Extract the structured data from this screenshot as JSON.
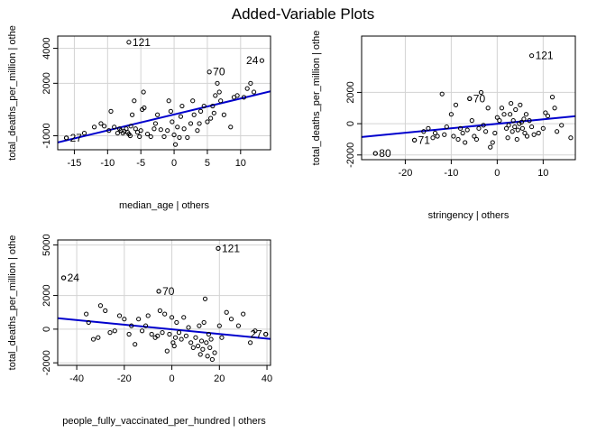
{
  "title": "Added-Variable Plots",
  "chart_data": [
    {
      "type": "scatter",
      "xlabel": "median_age | others",
      "ylabel": "total_deaths_per_million  | othe",
      "xlim": [
        -17.5,
        14.5
      ],
      "ylim": [
        -1800,
        4700
      ],
      "xticks": [
        -15,
        -10,
        -5,
        0,
        5,
        10
      ],
      "yticks": [
        -1000,
        2000,
        4000
      ],
      "grid": true,
      "fit_line": {
        "x": [
          -17.5,
          14.5
        ],
        "y": [
          -1380,
          1540
        ]
      },
      "labeled_points": [
        {
          "label": "121",
          "x": -6.8,
          "y": 4350
        },
        {
          "label": "70",
          "x": 5.3,
          "y": 2650
        },
        {
          "label": "24",
          "x": 13.2,
          "y": 3300
        },
        {
          "label": "27",
          "x": -16.2,
          "y": -1120
        }
      ],
      "points": [
        [
          -16.2,
          -1120
        ],
        [
          -13.5,
          -850
        ],
        [
          -12.0,
          -500
        ],
        [
          -11.0,
          -300
        ],
        [
          -10.5,
          -450
        ],
        [
          -9.8,
          -700
        ],
        [
          -9.5,
          400
        ],
        [
          -9.0,
          -500
        ],
        [
          -8.5,
          -850
        ],
        [
          -8.2,
          -600
        ],
        [
          -8.0,
          -700
        ],
        [
          -7.7,
          -850
        ],
        [
          -7.5,
          -750
        ],
        [
          -7.2,
          -600
        ],
        [
          -7.0,
          -800
        ],
        [
          -6.8,
          -900
        ],
        [
          -6.6,
          -1000
        ],
        [
          -6.5,
          -450
        ],
        [
          -6.3,
          200
        ],
        [
          -6.0,
          1000
        ],
        [
          -5.8,
          -600
        ],
        [
          -5.5,
          -800
        ],
        [
          -5.2,
          -1050
        ],
        [
          -5.0,
          -700
        ],
        [
          -4.8,
          500
        ],
        [
          -4.6,
          1500
        ],
        [
          -4.5,
          600
        ],
        [
          -4.0,
          -900
        ],
        [
          -3.5,
          -1050
        ],
        [
          -3.0,
          -600
        ],
        [
          -2.8,
          -300
        ],
        [
          -2.5,
          200
        ],
        [
          -2.0,
          -650
        ],
        [
          -1.5,
          -1050
        ],
        [
          -1.0,
          -700
        ],
        [
          -0.8,
          1000
        ],
        [
          -0.5,
          400
        ],
        [
          -0.3,
          -200
        ],
        [
          0,
          -950
        ],
        [
          0.2,
          -1500
        ],
        [
          0.5,
          -500
        ],
        [
          0.8,
          -1100
        ],
        [
          1.0,
          100
        ],
        [
          1.2,
          700
        ],
        [
          1.5,
          -600
        ],
        [
          2.0,
          -1100
        ],
        [
          2.5,
          -300
        ],
        [
          2.8,
          1000
        ],
        [
          3.0,
          200
        ],
        [
          3.5,
          -700
        ],
        [
          3.8,
          -300
        ],
        [
          4.0,
          400
        ],
        [
          4.5,
          700
        ],
        [
          5.0,
          -200
        ],
        [
          5.5,
          0
        ],
        [
          5.8,
          700
        ],
        [
          6.0,
          300
        ],
        [
          6.2,
          1300
        ],
        [
          6.5,
          2000
        ],
        [
          6.8,
          1500
        ],
        [
          7.0,
          1000
        ],
        [
          7.5,
          200
        ],
        [
          8.5,
          -500
        ],
        [
          9.0,
          1200
        ],
        [
          9.5,
          1300
        ],
        [
          10.5,
          1200
        ],
        [
          11.0,
          1700
        ],
        [
          11.5,
          2000
        ],
        [
          12.0,
          1500
        ]
      ]
    },
    {
      "type": "scatter",
      "xlabel": "stringency | others",
      "ylabel": "total_deaths_per_million  | othe",
      "xlim": [
        -29.5,
        17
      ],
      "ylim": [
        -2300,
        5600
      ],
      "xticks": [
        -20,
        -10,
        0,
        10
      ],
      "yticks": [
        -2000,
        0,
        2000
      ],
      "grid": true,
      "fit_line": {
        "x": [
          -29.5,
          17
        ],
        "y": [
          -850,
          480
        ]
      },
      "labeled_points": [
        {
          "label": "121",
          "x": 7.5,
          "y": 4350
        },
        {
          "label": "70",
          "x": -6.0,
          "y": 1600
        },
        {
          "label": "71",
          "x": -18.0,
          "y": -1050
        },
        {
          "label": "80",
          "x": -26.5,
          "y": -1900
        }
      ],
      "points": [
        [
          -26.5,
          -1900
        ],
        [
          -18.0,
          -1050
        ],
        [
          -16.0,
          -500
        ],
        [
          -15.0,
          -300
        ],
        [
          -14.0,
          -900
        ],
        [
          -13.5,
          -600
        ],
        [
          -13.0,
          -800
        ],
        [
          -12.0,
          1900
        ],
        [
          -11.5,
          -700
        ],
        [
          -11.0,
          -200
        ],
        [
          -10.0,
          600
        ],
        [
          -9.5,
          -800
        ],
        [
          -9.0,
          1200
        ],
        [
          -8.5,
          -1000
        ],
        [
          -8.0,
          -300
        ],
        [
          -7.5,
          -600
        ],
        [
          -7.0,
          -1200
        ],
        [
          -6.5,
          -400
        ],
        [
          -6.0,
          1600
        ],
        [
          -5.5,
          200
        ],
        [
          -5.0,
          -800
        ],
        [
          -4.5,
          -1000
        ],
        [
          -4.0,
          -300
        ],
        [
          -3.5,
          2000
        ],
        [
          -3.0,
          -100
        ],
        [
          -2.5,
          -500
        ],
        [
          -2.0,
          1000
        ],
        [
          -1.5,
          -1500
        ],
        [
          -1.0,
          -1200
        ],
        [
          -0.5,
          -600
        ],
        [
          0,
          400
        ],
        [
          0.5,
          200
        ],
        [
          1.0,
          1000
        ],
        [
          1.5,
          600
        ],
        [
          2.0,
          -300
        ],
        [
          2.3,
          -900
        ],
        [
          2.5,
          -100
        ],
        [
          2.8,
          600
        ],
        [
          3.0,
          1300
        ],
        [
          3.3,
          -500
        ],
        [
          3.5,
          200
        ],
        [
          3.8,
          -200
        ],
        [
          4.0,
          900
        ],
        [
          4.3,
          -1000
        ],
        [
          4.5,
          -400
        ],
        [
          4.8,
          0
        ],
        [
          5.0,
          1200
        ],
        [
          5.3,
          100
        ],
        [
          5.5,
          -300
        ],
        [
          5.8,
          300
        ],
        [
          6.0,
          -600
        ],
        [
          6.3,
          600
        ],
        [
          6.5,
          -800
        ],
        [
          7.0,
          200
        ],
        [
          7.5,
          -200
        ],
        [
          8.0,
          -700
        ],
        [
          9.0,
          -600
        ],
        [
          10.0,
          -300
        ],
        [
          10.5,
          700
        ],
        [
          11.0,
          500
        ],
        [
          12.0,
          1700
        ],
        [
          12.5,
          1000
        ],
        [
          13.0,
          -500
        ],
        [
          14.0,
          -100
        ],
        [
          16.0,
          -900
        ]
      ]
    },
    {
      "type": "scatter",
      "xlabel": "people_fully_vaccinated_per_hundred | others",
      "ylabel": "total_deaths_per_million  | othe",
      "xlim": [
        -48,
        41.5
      ],
      "ylim": [
        -2150,
        5300
      ],
      "xticks": [
        -40,
        -20,
        0,
        20,
        40
      ],
      "yticks": [
        -2000,
        0,
        2000,
        5000
      ],
      "grid": true,
      "fit_line": {
        "x": [
          -48,
          41.5
        ],
        "y": [
          650,
          -580
        ]
      },
      "labeled_points": [
        {
          "label": "121",
          "x": 19.5,
          "y": 4800
        },
        {
          "label": "24",
          "x": -45.5,
          "y": 3050
        },
        {
          "label": "70",
          "x": -5.5,
          "y": 2250
        },
        {
          "label": "27",
          "x": 39.5,
          "y": -300
        }
      ],
      "points": [
        [
          -45.5,
          3050
        ],
        [
          -36.0,
          900
        ],
        [
          -35.0,
          400
        ],
        [
          -33.0,
          -600
        ],
        [
          -31.0,
          -500
        ],
        [
          -30.0,
          1400
        ],
        [
          -28.0,
          1100
        ],
        [
          -26.0,
          -200
        ],
        [
          -24.0,
          -100
        ],
        [
          -22.0,
          800
        ],
        [
          -20.0,
          600
        ],
        [
          -18.0,
          -300
        ],
        [
          -17.0,
          200
        ],
        [
          -15.5,
          -900
        ],
        [
          -14.0,
          600
        ],
        [
          -12.5,
          -100
        ],
        [
          -11.0,
          200
        ],
        [
          -10.0,
          800
        ],
        [
          -8.5,
          -300
        ],
        [
          -7.0,
          -500
        ],
        [
          -6.0,
          -400
        ],
        [
          -5.5,
          2250
        ],
        [
          -5.0,
          1100
        ],
        [
          -4.0,
          -200
        ],
        [
          -3.0,
          900
        ],
        [
          -2.0,
          -1300
        ],
        [
          -1.0,
          -300
        ],
        [
          0,
          700
        ],
        [
          0.5,
          -800
        ],
        [
          1.0,
          -1000
        ],
        [
          1.5,
          -500
        ],
        [
          2.0,
          400
        ],
        [
          3.0,
          -200
        ],
        [
          4.0,
          -600
        ],
        [
          5.0,
          700
        ],
        [
          6.0,
          -400
        ],
        [
          7.0,
          100
        ],
        [
          8.0,
          -800
        ],
        [
          9.0,
          -1100
        ],
        [
          10.0,
          -500
        ],
        [
          11.0,
          -1000
        ],
        [
          11.5,
          200
        ],
        [
          12.0,
          -1500
        ],
        [
          12.5,
          -700
        ],
        [
          13.0,
          -1200
        ],
        [
          13.5,
          400
        ],
        [
          14.0,
          1800
        ],
        [
          14.5,
          -800
        ],
        [
          15.0,
          -1600
        ],
        [
          15.5,
          -300
        ],
        [
          16.0,
          -1100
        ],
        [
          16.5,
          -600
        ],
        [
          17.0,
          -1800
        ],
        [
          18.0,
          -1400
        ],
        [
          19.5,
          4800
        ],
        [
          20.0,
          200
        ],
        [
          21.0,
          -500
        ],
        [
          23.0,
          1000
        ],
        [
          25.0,
          600
        ],
        [
          28.0,
          200
        ],
        [
          30.0,
          900
        ],
        [
          33.0,
          -800
        ],
        [
          35.0,
          -100
        ],
        [
          39.5,
          -300
        ]
      ]
    }
  ]
}
